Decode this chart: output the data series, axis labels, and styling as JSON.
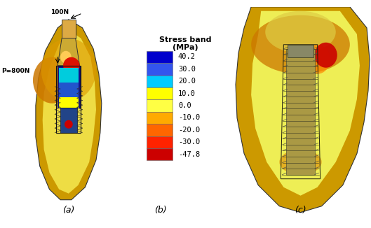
{
  "panels": [
    "(a)",
    "(b)",
    "(c)"
  ],
  "colorbar_title": "Stress band\n(MPa)",
  "colorbar_values": [
    "40.2",
    "30.0",
    "20.0",
    "10.0",
    "0.0",
    "-10.0",
    "-20.0",
    "-30.0",
    "-47.8"
  ],
  "colorbar_colors": [
    "#0000dd",
    "#3366ff",
    "#00ccff",
    "#ffff00",
    "#ffff00",
    "#ffaa00",
    "#ff6600",
    "#ff2200",
    "#dd0000"
  ],
  "background_color": "#ffffff",
  "annotation_a_top": "100N",
  "annotation_a_left": "P=800N",
  "fig_width": 5.29,
  "fig_height": 3.26,
  "dpi": 100,
  "panel_label_fontsize": 9,
  "colorbar_title_fontsize": 8,
  "colorbar_val_fontsize": 7.5,
  "annotation_fontsize": 6.5
}
